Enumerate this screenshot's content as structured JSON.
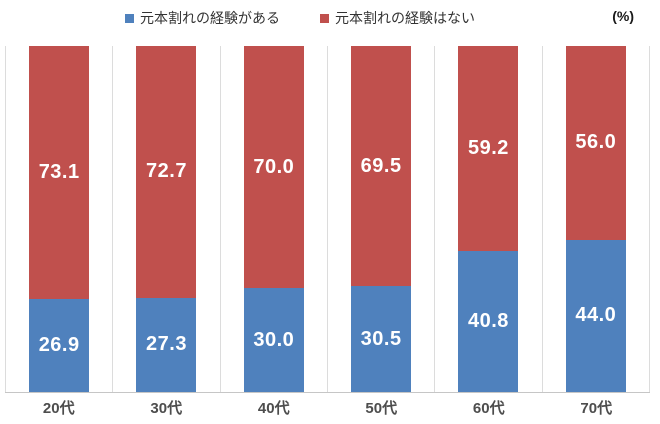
{
  "chart_data": {
    "type": "bar",
    "stacked": true,
    "percent_stacked": true,
    "categories": [
      "20代",
      "30代",
      "40代",
      "50代",
      "60代",
      "70代"
    ],
    "series": [
      {
        "name": "元本割れの経験がある",
        "color": "#4F81BD",
        "position": "bottom",
        "values": [
          26.9,
          27.3,
          30.0,
          30.5,
          40.8,
          44.0
        ],
        "labels": [
          "26.9",
          "27.3",
          "30.0",
          "30.5",
          "40.8",
          "44.0"
        ]
      },
      {
        "name": "元本割れの経験はない",
        "color": "#C0504D",
        "position": "top",
        "values": [
          73.1,
          72.7,
          70.0,
          69.5,
          59.2,
          56.0
        ],
        "labels": [
          "73.1",
          "72.7",
          "70.0",
          "69.5",
          "59.2",
          "56.0"
        ]
      }
    ],
    "unit_label": "(%)",
    "title": "",
    "xlabel": "",
    "ylabel": "",
    "ylim": [
      0,
      100
    ],
    "legend_position": "top",
    "grid": "vertical-category-boundaries",
    "data_label_color": "#ffffff",
    "gridline_color": "#dcdcdc",
    "axis_line_color": "#c6c6c6"
  }
}
